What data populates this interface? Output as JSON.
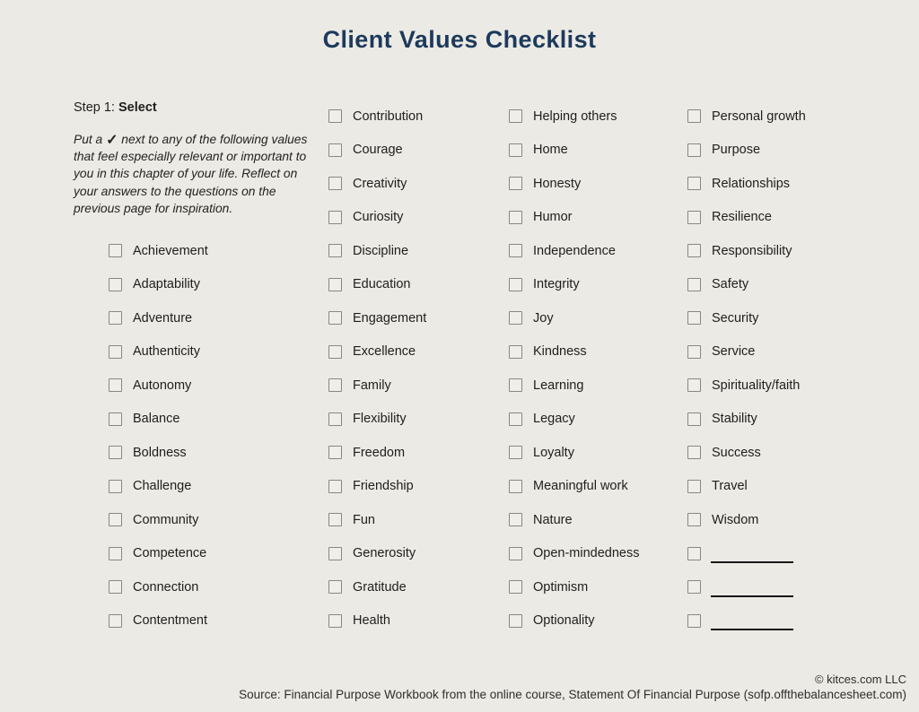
{
  "page": {
    "title": "Client Values Checklist"
  },
  "colors": {
    "background": "#ECEAE4",
    "title": "#1C3A5C",
    "checkbox_border": "#8B8680",
    "text": "#1E1E1E"
  },
  "instructions": {
    "step_prefix": "Step 1: ",
    "step_bold": "Select",
    "body_before_check": "Put a ",
    "check_glyph": "✓",
    "body_after_check": " next to any of the following values that feel especially relevant or important to you in this chapter of your life. Reflect on your answers to the questions on the previous page for inspiration."
  },
  "checklist": {
    "checkbox_state": "unchecked",
    "columns": [
      {
        "items": [
          "Achievement",
          "Adaptability",
          "Adventure",
          "Authenticity",
          "Autonomy",
          "Balance",
          "Boldness",
          "Challenge",
          "Community",
          "Competence",
          "Connection",
          "Contentment"
        ],
        "write_ins": 0
      },
      {
        "items": [
          "Contribution",
          "Courage",
          "Creativity",
          "Curiosity",
          "Discipline",
          "Education",
          "Engagement",
          "Excellence",
          "Family",
          "Flexibility",
          "Freedom",
          "Friendship",
          "Fun",
          "Generosity",
          "Gratitude",
          "Health"
        ],
        "write_ins": 0
      },
      {
        "items": [
          "Helping others",
          "Home",
          "Honesty",
          "Humor",
          "Independence",
          "Integrity",
          "Joy",
          "Kindness",
          "Learning",
          "Legacy",
          "Loyalty",
          "Meaningful work",
          "Nature",
          "Open-mindedness",
          "Optimism",
          "Optionality"
        ],
        "write_ins": 0
      },
      {
        "items": [
          "Personal growth",
          "Purpose",
          "Relationships",
          "Resilience",
          "Responsibility",
          "Safety",
          "Security",
          "Service",
          "Spirituality/faith",
          "Stability",
          "Success",
          "Travel",
          "Wisdom"
        ],
        "write_ins": 3
      }
    ]
  },
  "footer": {
    "copyright": "© kitces.com LLC",
    "source": "Source: Financial Purpose Workbook from the online course, Statement Of Financial Purpose (sofp.offthebalancesheet.com)"
  }
}
